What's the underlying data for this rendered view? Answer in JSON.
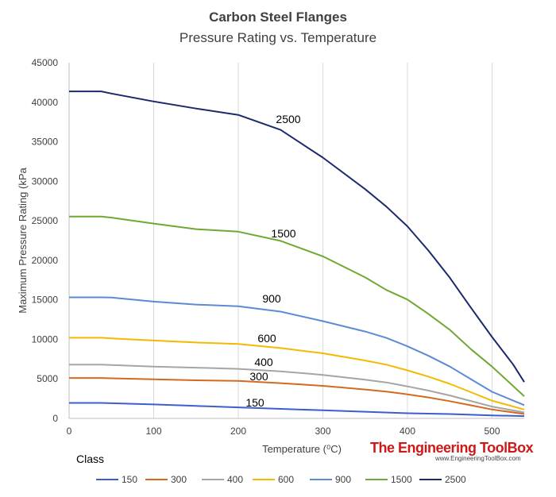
{
  "chart_data": {
    "type": "line",
    "title": "Carbon Steel Flanges",
    "subtitle": "Pressure Rating vs. Temperature",
    "xlabel": "Temperature (⁰C)",
    "ylabel": "Maximum Pressure Rating (kPa",
    "xlim": [
      0,
      538
    ],
    "ylim": [
      0,
      45000
    ],
    "xticks": [
      0,
      100,
      200,
      300,
      400,
      500
    ],
    "yticks": [
      0,
      5000,
      10000,
      15000,
      20000,
      25000,
      30000,
      35000,
      40000,
      45000
    ],
    "grid": "vertical",
    "legend_title": "Class",
    "legend_position": "bottom",
    "series": [
      {
        "name": "150",
        "color": "#3a5fcd",
        "label": "150",
        "x": [
          0,
          38,
          50,
          100,
          150,
          200,
          250,
          300,
          350,
          400,
          450,
          500,
          538
        ],
        "y": [
          1960,
          1960,
          1920,
          1770,
          1580,
          1400,
          1210,
          1020,
          840,
          650,
          550,
          380,
          290
        ]
      },
      {
        "name": "300",
        "color": "#d46a1f",
        "label": "300",
        "x": [
          0,
          38,
          50,
          100,
          150,
          200,
          250,
          300,
          350,
          375,
          400,
          425,
          450,
          475,
          500,
          538
        ],
        "y": [
          5110,
          5110,
          5070,
          4950,
          4820,
          4740,
          4460,
          4120,
          3660,
          3400,
          3040,
          2650,
          2180,
          1660,
          1130,
          560
        ]
      },
      {
        "name": "400",
        "color": "#a5a5a5",
        "label": "400",
        "x": [
          0,
          38,
          50,
          100,
          150,
          200,
          250,
          300,
          350,
          375,
          400,
          425,
          450,
          475,
          500,
          538
        ],
        "y": [
          6810,
          6810,
          6750,
          6560,
          6420,
          6270,
          5960,
          5500,
          4890,
          4550,
          4050,
          3520,
          2900,
          2200,
          1500,
          750
        ]
      },
      {
        "name": "600",
        "color": "#f5b900",
        "label": "600",
        "x": [
          0,
          38,
          50,
          100,
          150,
          200,
          250,
          300,
          350,
          375,
          400,
          425,
          450,
          475,
          500,
          538
        ],
        "y": [
          10210,
          10210,
          10130,
          9850,
          9600,
          9410,
          8900,
          8240,
          7320,
          6800,
          6080,
          5280,
          4370,
          3310,
          2240,
          1120
        ]
      },
      {
        "name": "900",
        "color": "#5b8bd5",
        "label": "900",
        "x": [
          0,
          38,
          50,
          100,
          150,
          200,
          250,
          300,
          350,
          375,
          400,
          425,
          450,
          475,
          500,
          538
        ],
        "y": [
          15320,
          15320,
          15290,
          14780,
          14400,
          14180,
          13510,
          12300,
          10990,
          10190,
          9120,
          7920,
          6560,
          4960,
          3360,
          1680
        ]
      },
      {
        "name": "1500",
        "color": "#6fa832",
        "label": "1500",
        "x": [
          0,
          38,
          50,
          100,
          150,
          200,
          250,
          300,
          350,
          375,
          400,
          425,
          450,
          475,
          500,
          538
        ],
        "y": [
          25530,
          25530,
          25400,
          24650,
          23950,
          23630,
          22460,
          20500,
          17840,
          16250,
          15040,
          13200,
          11210,
          8760,
          6550,
          2800
        ]
      },
      {
        "name": "2500",
        "color": "#1b2a6b",
        "label": "2500",
        "x": [
          0,
          38,
          50,
          100,
          150,
          200,
          250,
          300,
          350,
          375,
          400,
          425,
          450,
          475,
          500,
          525,
          538
        ],
        "y": [
          41370,
          41370,
          41100,
          40100,
          39200,
          38400,
          36500,
          33000,
          29000,
          26800,
          24300,
          21200,
          17800,
          14000,
          10300,
          6800,
          4600
        ]
      }
    ]
  },
  "branding": {
    "main": "The Engineering ToolBox",
    "sub": "www.EngineeringToolBox.com"
  }
}
